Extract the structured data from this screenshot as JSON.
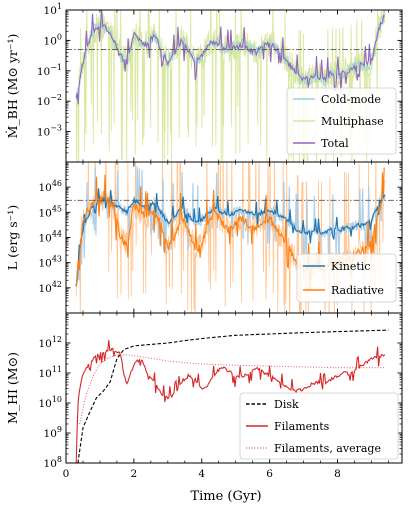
{
  "chart_data": [
    {
      "type": "line",
      "ylabel": "Ṁ_BH (M⊙ yr⁻¹)",
      "yscale": "log",
      "ylim": [
        0.0001,
        10
      ],
      "xlim": [
        0,
        9.9
      ],
      "yticks": [
        {
          "value": 0.001,
          "base": "10",
          "exp": "−3"
        },
        {
          "value": 0.01,
          "base": "10",
          "exp": "−2"
        },
        {
          "value": 0.1,
          "base": "10",
          "exp": "−1"
        },
        {
          "value": 1,
          "base": "10",
          "exp": "0"
        },
        {
          "value": 10,
          "base": "10",
          "exp": "1"
        }
      ],
      "hline": 0.5,
      "legend_position": "lower-right",
      "legend_items": [
        {
          "label": "Cold-mode",
          "color": "#8fd3e0",
          "style": "solid"
        },
        {
          "label": "Multiphase",
          "color": "#d9e8a0",
          "style": "solid"
        },
        {
          "label": "Total",
          "color": "#9467bd",
          "style": "solid"
        }
      ],
      "series": [
        {
          "name": "Total",
          "color": "#9467bd",
          "x": [
            0.3,
            0.45,
            0.6,
            0.8,
            1.0,
            1.2,
            1.4,
            1.6,
            1.8,
            2.0,
            2.2,
            2.4,
            2.6,
            2.8,
            3.0,
            3.2,
            3.4,
            3.6,
            3.8,
            4.0,
            4.2,
            4.4,
            4.6,
            4.8,
            5.0,
            5.2,
            5.4,
            5.6,
            5.8,
            6.0,
            6.2,
            6.4,
            6.6,
            6.8,
            7.0,
            7.2,
            7.4,
            7.6,
            7.8,
            8.0,
            8.2,
            8.4,
            8.6,
            8.8,
            9.0,
            9.2,
            9.4
          ],
          "y": [
            0.01,
            0.1,
            0.5,
            2.0,
            3.0,
            2.5,
            1.0,
            0.3,
            0.2,
            1.5,
            1.0,
            0.7,
            1.5,
            0.5,
            0.2,
            0.4,
            1.0,
            0.5,
            0.2,
            0.3,
            0.8,
            0.9,
            0.6,
            0.5,
            0.6,
            0.7,
            0.5,
            0.4,
            0.6,
            0.8,
            0.5,
            0.3,
            0.15,
            0.08,
            0.05,
            0.06,
            0.07,
            0.05,
            0.08,
            0.07,
            0.09,
            0.1,
            0.15,
            0.15,
            0.2,
            2.0,
            8.0
          ]
        }
      ]
    },
    {
      "type": "line",
      "ylabel": "L (erg s⁻¹)",
      "yscale": "log",
      "ylim": [
        1e+41,
        1e+47
      ],
      "xlim": [
        0,
        9.9
      ],
      "yticks": [
        {
          "value": 1e+42,
          "base": "10",
          "exp": "42"
        },
        {
          "value": 1e+43,
          "base": "10",
          "exp": "43"
        },
        {
          "value": 1e+44,
          "base": "10",
          "exp": "44"
        },
        {
          "value": 1e+45,
          "base": "10",
          "exp": "45"
        },
        {
          "value": 1e+46,
          "base": "10",
          "exp": "46"
        }
      ],
      "hline": 3e+45,
      "legend_position": "lower-right",
      "legend_items": [
        {
          "label": "Kinetic",
          "color": "#1f77b4",
          "style": "solid"
        },
        {
          "label": "Radiative",
          "color": "#ff7f0e",
          "style": "solid"
        }
      ],
      "series": [
        {
          "name": "Kinetic",
          "color": "#1f77b4",
          "x": [
            0.3,
            0.45,
            0.6,
            0.8,
            1.0,
            1.2,
            1.4,
            1.6,
            1.8,
            2.0,
            2.2,
            2.4,
            2.6,
            2.8,
            3.0,
            3.2,
            3.4,
            3.6,
            3.8,
            4.0,
            4.2,
            4.4,
            4.6,
            4.8,
            5.0,
            5.2,
            5.4,
            5.6,
            5.8,
            6.0,
            6.2,
            6.4,
            6.6,
            6.8,
            7.0,
            7.2,
            7.4,
            7.6,
            7.8,
            8.0,
            8.2,
            8.4,
            8.6,
            8.8,
            9.0,
            9.2,
            9.4
          ],
          "y": [
            1e+42,
            1e+44,
            5e+44,
            2e+45,
            3e+45,
            3e+45,
            2e+45,
            1.5e+45,
            1e+45,
            3e+45,
            2e+45,
            1.5e+45,
            2.5e+45,
            1e+45,
            4e+44,
            6e+44,
            1.5e+45,
            8e+44,
            4e+44,
            5e+44,
            1e+45,
            1.5e+45,
            1e+45,
            8e+44,
            1e+45,
            1.2e+45,
            9e+44,
            8e+44,
            1e+45,
            1.2e+45,
            9e+44,
            6e+44,
            4e+44,
            2e+44,
            1.5e+44,
            1.5e+44,
            1.8e+44,
            1.5e+44,
            2e+44,
            2e+44,
            2.2e+44,
            2.5e+44,
            3e+44,
            3e+44,
            5e+44,
            2e+45,
            5e+45
          ]
        },
        {
          "name": "Radiative",
          "color": "#ff7f0e",
          "x": [
            0.3,
            0.45,
            0.6,
            0.8,
            1.0,
            1.2,
            1.4,
            1.6,
            1.8,
            2.0,
            2.2,
            2.4,
            2.6,
            2.8,
            3.0,
            3.2,
            3.4,
            3.6,
            3.8,
            4.0,
            4.2,
            4.4,
            4.6,
            4.8,
            5.0,
            5.2,
            5.4,
            5.6,
            5.8,
            6.0,
            6.2,
            6.4,
            6.6,
            6.8,
            7.0,
            7.2,
            7.4,
            7.6,
            7.8,
            8.0,
            8.2,
            8.4,
            8.6,
            8.8,
            9.0,
            9.2,
            9.4
          ],
          "y": [
            1e+42,
            2e+44,
            1e+45,
            2e+45,
            3e+45,
            3e+45,
            2e+45,
            1e+44,
            5e+43,
            2e+45,
            1e+45,
            6e+44,
            1.5e+45,
            3e+44,
            4e+43,
            1e+44,
            7e+44,
            2e+44,
            3e+43,
            5e+43,
            5e+44,
            8e+44,
            4e+44,
            2e+44,
            4e+44,
            6e+44,
            3e+44,
            2e+44,
            4e+44,
            6e+44,
            2e+44,
            8e+43,
            3e+43,
            1e+43,
            5e+42,
            6e+42,
            8e+42,
            5e+42,
            1e+43,
            8e+42,
            1.2e+43,
            1.5e+43,
            3e+43,
            3e+43,
            8e+43,
            1e+45,
            8e+45
          ]
        }
      ]
    },
    {
      "type": "line",
      "ylabel": "M_HI (M⊙)",
      "xlabel": "Time (Gyr)",
      "yscale": "log",
      "ylim": [
        100000000.0,
        10000000000000.0
      ],
      "xlim": [
        0,
        9.9
      ],
      "xticks": [
        0,
        2,
        4,
        6,
        8
      ],
      "yticks": [
        {
          "value": 100000000.0,
          "base": "10",
          "exp": "8"
        },
        {
          "value": 1000000000.0,
          "base": "10",
          "exp": "9"
        },
        {
          "value": 10000000000.0,
          "base": "10",
          "exp": "10"
        },
        {
          "value": 100000000000.0,
          "base": "10",
          "exp": "11"
        },
        {
          "value": 1000000000000.0,
          "base": "10",
          "exp": "12"
        }
      ],
      "legend_position": "lower-right",
      "legend_items": [
        {
          "label": "Disk",
          "color": "#000000",
          "style": "dashed"
        },
        {
          "label": "Filaments",
          "color": "#d62728",
          "style": "solid"
        },
        {
          "label": "Filaments, average",
          "color": "#e8627a",
          "style": "dotted"
        }
      ],
      "series": [
        {
          "name": "Disk",
          "color": "#000000",
          "x": [
            0.35,
            0.5,
            0.7,
            0.9,
            1.1,
            1.3,
            1.5,
            1.7,
            2.0,
            2.5,
            3.0,
            3.5,
            4.0,
            4.5,
            5.0,
            5.5,
            6.0,
            6.5,
            7.0,
            7.5,
            8.0,
            8.5,
            9.0,
            9.5
          ],
          "y": [
            100000000.0,
            1500000000.0,
            5000000000.0,
            15000000000.0,
            25000000000.0,
            50000000000.0,
            300000000000.0,
            600000000000.0,
            800000000000.0,
            900000000000.0,
            1000000000000.0,
            1200000000000.0,
            1400000000000.0,
            1600000000000.0,
            1800000000000.0,
            1900000000000.0,
            2000000000000.0,
            2100000000000.0,
            2200000000000.0,
            2300000000000.0,
            2400000000000.0,
            2500000000000.0,
            2600000000000.0,
            2700000000000.0
          ]
        },
        {
          "name": "Filaments",
          "color": "#d62728",
          "x": [
            0.3,
            0.35,
            0.45,
            0.6,
            0.8,
            1.0,
            1.2,
            1.4,
            1.6,
            1.7,
            1.8,
            2.0,
            2.2,
            2.4,
            2.6,
            2.8,
            3.0,
            3.2,
            3.4,
            3.6,
            3.8,
            4.0,
            4.2,
            4.4,
            4.6,
            4.8,
            5.0,
            5.2,
            5.4,
            5.6,
            5.8,
            6.0,
            6.2,
            6.4,
            6.6,
            6.8,
            7.0,
            7.2,
            7.4,
            7.6,
            7.8,
            8.0,
            8.2,
            8.4,
            8.6,
            8.8,
            9.0,
            9.2,
            9.4
          ],
          "y": [
            100000000.0,
            10000000000.0,
            60000000000.0,
            150000000000.0,
            300000000000.0,
            450000000000.0,
            550000000000.0,
            600000000000.0,
            500000000000.0,
            100000000000.0,
            40000000000.0,
            200000000000.0,
            300000000000.0,
            100000000000.0,
            50000000000.0,
            20000000000.0,
            15000000000.0,
            20000000000.0,
            50000000000.0,
            80000000000.0,
            60000000000.0,
            30000000000.0,
            40000000000.0,
            100000000000.0,
            150000000000.0,
            120000000000.0,
            70000000000.0,
            80000000000.0,
            100000000000.0,
            140000000000.0,
            110000000000.0,
            80000000000.0,
            60000000000.0,
            40000000000.0,
            30000000000.0,
            25000000000.0,
            30000000000.0,
            40000000000.0,
            50000000000.0,
            40000000000.0,
            60000000000.0,
            80000000000.0,
            100000000000.0,
            90000000000.0,
            150000000000.0,
            200000000000.0,
            300000000000.0,
            350000000000.0,
            400000000000.0
          ]
        },
        {
          "name": "Filaments, average",
          "color": "#e8627a",
          "x": [
            0.4,
            0.6,
            0.8,
            1.0,
            1.2,
            1.5,
            1.8,
            2.2,
            2.6,
            3.0,
            3.5,
            4.0,
            5.0,
            6.0,
            7.0,
            8.0,
            9.0,
            9.4
          ],
          "y": [
            2000000000.0,
            20000000000.0,
            80000000000.0,
            200000000000.0,
            300000000000.0,
            400000000000.0,
            400000000000.0,
            350000000000.0,
            300000000000.0,
            250000000000.0,
            220000000000.0,
            200000000000.0,
            180000000000.0,
            170000000000.0,
            160000000000.0,
            150000000000.0,
            150000000000.0,
            150000000000.0
          ]
        }
      ]
    }
  ]
}
